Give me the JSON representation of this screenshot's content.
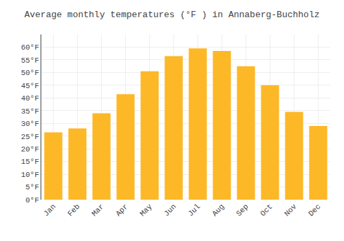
{
  "chart_data": {
    "type": "bar",
    "title": "Average monthly temperatures (°F ) in Annaberg-Buchholz",
    "categories": [
      "Jan",
      "Feb",
      "Mar",
      "Apr",
      "May",
      "Jun",
      "Jul",
      "Aug",
      "Sep",
      "Oct",
      "Nov",
      "Dec"
    ],
    "values": [
      26.5,
      28.0,
      34.0,
      41.5,
      50.5,
      56.5,
      59.5,
      58.5,
      52.5,
      45.0,
      34.5,
      29.0
    ],
    "color": "#FDB827",
    "ylim": [
      0,
      65
    ],
    "yticks": [
      {
        "value": 0,
        "label": "0°F"
      },
      {
        "value": 5,
        "label": "5°F"
      },
      {
        "value": 10,
        "label": "10°F"
      },
      {
        "value": 15,
        "label": "15°F"
      },
      {
        "value": 20,
        "label": "20°F"
      },
      {
        "value": 25,
        "label": "25°F"
      },
      {
        "value": 30,
        "label": "30°F"
      },
      {
        "value": 35,
        "label": "35°F"
      },
      {
        "value": 40,
        "label": "40°F"
      },
      {
        "value": 45,
        "label": "45°F"
      },
      {
        "value": 50,
        "label": "50°F"
      },
      {
        "value": 55,
        "label": "55°F"
      },
      {
        "value": 60,
        "label": "60°F"
      }
    ],
    "grid": true
  }
}
